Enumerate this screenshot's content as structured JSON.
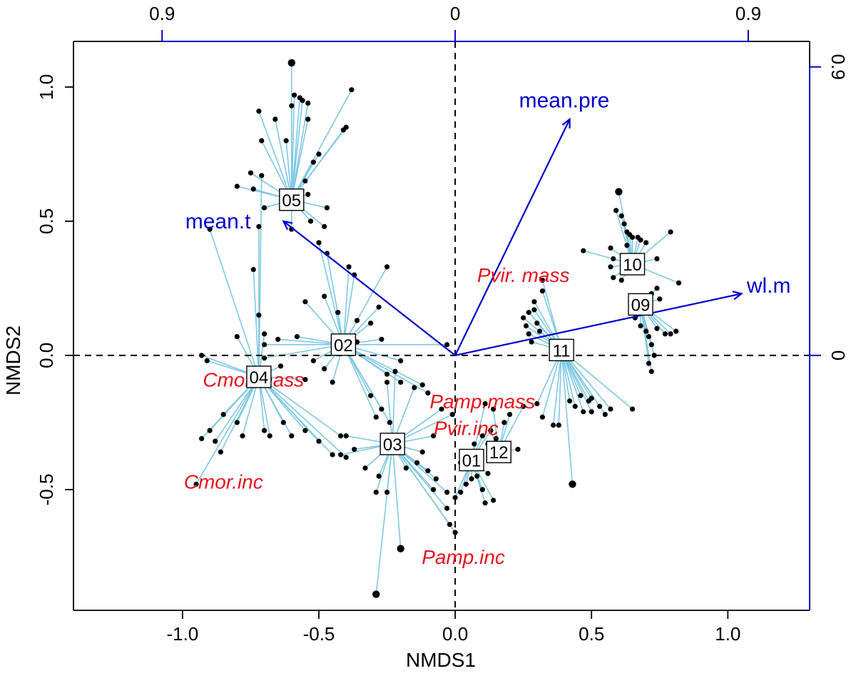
{
  "chart_data": {
    "type": "scatter",
    "xlabel": "NMDS1",
    "ylabel": "NMDS2",
    "xlim": [
      -1.4,
      1.3
    ],
    "ylim": [
      -0.95,
      1.17
    ],
    "x_ticks": [
      -1.0,
      -0.5,
      0.0,
      0.5,
      1.0
    ],
    "x_tick_labels": [
      "-1.0",
      "-0.5",
      "0.0",
      "0.5",
      "1.0"
    ],
    "y_ticks": [
      -0.5,
      0.0,
      0.5,
      1.0
    ],
    "y_tick_labels": [
      "-0.5",
      "0.0",
      "0.5",
      "1.0"
    ],
    "env_axis": {
      "color": "#0000cc",
      "top_tick_labels": [
        "0.9",
        "0",
        "0.9"
      ],
      "right_tick_labels": [
        "0.9",
        "0"
      ],
      "top_ticks_x": [
        -1.075,
        0.0,
        1.075
      ],
      "right_ticks_y": [
        1.075,
        0.0
      ]
    },
    "colors": {
      "spider": "#7ec8e3",
      "points": "#000000",
      "vectors": "#0000cc",
      "species": "#e8141e",
      "reference_lines": "#000000"
    },
    "env_vectors": [
      {
        "label": "mean.pre",
        "x": 0.42,
        "y": 0.88,
        "label_x": 0.4,
        "label_y": 0.95
      },
      {
        "label": "mean.t",
        "x": -0.63,
        "y": 0.5,
        "label_x": -0.87,
        "label_y": 0.5
      },
      {
        "label": "wl.m",
        "x": 1.05,
        "y": 0.23,
        "label_x": 1.15,
        "label_y": 0.26
      }
    ],
    "species": [
      {
        "label": "Pvir. mass",
        "x": 0.25,
        "y": 0.3
      },
      {
        "label": "Cmor.mass",
        "x": -0.74,
        "y": -0.09
      },
      {
        "label": "Pamp.mass",
        "x": 0.1,
        "y": -0.17
      },
      {
        "label": "Pvir.inc",
        "x": 0.04,
        "y": -0.27
      },
      {
        "label": "Cmor.inc",
        "x": -0.85,
        "y": -0.47
      },
      {
        "label": "Pamp.inc",
        "x": 0.03,
        "y": -0.75
      }
    ],
    "sites": [
      {
        "label": "05",
        "x": -0.6,
        "y": 0.58,
        "points": [
          [
            -0.6,
            1.09
          ],
          [
            -0.59,
            0.97
          ],
          [
            -0.57,
            0.96
          ],
          [
            -0.56,
            0.95
          ],
          [
            -0.54,
            0.94
          ],
          [
            -0.6,
            0.93
          ],
          [
            -0.72,
            0.91
          ],
          [
            -0.66,
            0.88
          ],
          [
            -0.54,
            0.88
          ],
          [
            -0.38,
            0.99
          ],
          [
            -0.4,
            0.85
          ],
          [
            -0.71,
            0.8
          ],
          [
            -0.62,
            0.8
          ],
          [
            -0.5,
            0.75
          ],
          [
            -0.41,
            0.84
          ],
          [
            -0.52,
            0.72
          ],
          [
            -0.75,
            0.68
          ],
          [
            -0.8,
            0.63
          ],
          [
            -0.74,
            0.62
          ],
          [
            -0.55,
            0.65
          ],
          [
            -0.54,
            0.6
          ],
          [
            -0.47,
            0.55
          ],
          [
            -0.7,
            0.55
          ],
          [
            -0.53,
            0.5
          ],
          [
            -0.48,
            0.48
          ],
          [
            -0.6,
            0.47
          ]
        ]
      },
      {
        "label": "02",
        "x": -0.41,
        "y": 0.04,
        "points": [
          [
            -0.5,
            0.42
          ],
          [
            -0.47,
            0.38
          ],
          [
            -0.39,
            0.33
          ],
          [
            -0.37,
            0.3
          ],
          [
            -0.25,
            0.33
          ],
          [
            -0.28,
            0.18
          ],
          [
            -0.48,
            0.22
          ],
          [
            -0.55,
            0.2
          ],
          [
            -0.43,
            0.16
          ],
          [
            -0.36,
            0.13
          ],
          [
            -0.31,
            0.12
          ],
          [
            -0.36,
            0.05
          ],
          [
            -0.58,
            0.07
          ],
          [
            -0.65,
            0.06
          ],
          [
            -0.7,
            0.04
          ],
          [
            -0.7,
            -0.01
          ],
          [
            -0.27,
            0.06
          ],
          [
            -0.03,
            0.04
          ],
          [
            -0.2,
            -0.02
          ],
          [
            -0.52,
            -0.02
          ],
          [
            -0.48,
            -0.05
          ],
          [
            -0.25,
            -0.07
          ],
          [
            -0.2,
            -0.1
          ],
          [
            -0.12,
            -0.11
          ],
          [
            -0.1,
            -0.14
          ],
          [
            -0.45,
            -0.1
          ],
          [
            -0.31,
            -0.15
          ],
          [
            -0.27,
            -0.2
          ],
          [
            -0.29,
            -0.23
          ],
          [
            -0.24,
            -0.25
          ]
        ]
      },
      {
        "label": "04",
        "x": -0.72,
        "y": -0.08,
        "points": [
          [
            -0.9,
            0.47
          ],
          [
            -0.71,
            0.67
          ],
          [
            -0.72,
            0.48
          ],
          [
            -0.74,
            0.32
          ],
          [
            -0.72,
            0.15
          ],
          [
            -0.7,
            0.08
          ],
          [
            -0.8,
            0.07
          ],
          [
            -0.93,
            0.0
          ],
          [
            -0.91,
            -0.02
          ],
          [
            -0.64,
            -0.04
          ],
          [
            -0.55,
            -0.09
          ],
          [
            -0.85,
            -0.22
          ],
          [
            -0.9,
            -0.28
          ],
          [
            -0.88,
            -0.32
          ],
          [
            -0.86,
            -0.36
          ],
          [
            -0.8,
            -0.25
          ],
          [
            -0.78,
            -0.3
          ],
          [
            -0.7,
            -0.28
          ],
          [
            -0.68,
            -0.3
          ],
          [
            -0.63,
            -0.25
          ],
          [
            -0.6,
            -0.3
          ],
          [
            -0.55,
            -0.28
          ],
          [
            -0.5,
            -0.32
          ],
          [
            -0.42,
            -0.3
          ],
          [
            -0.45,
            -0.37
          ],
          [
            -0.4,
            -0.38
          ],
          [
            -0.95,
            -0.48
          ],
          [
            -0.93,
            -0.31
          ]
        ]
      },
      {
        "label": "03",
        "x": -0.23,
        "y": -0.33,
        "points": [
          [
            -0.29,
            -0.89
          ],
          [
            -0.2,
            -0.72
          ],
          [
            -0.29,
            -0.51
          ],
          [
            -0.25,
            -0.51
          ],
          [
            -0.1,
            -0.43
          ],
          [
            -0.07,
            -0.46
          ],
          [
            -0.08,
            -0.5
          ],
          [
            -0.03,
            -0.51
          ],
          [
            -0.03,
            -0.57
          ],
          [
            -0.02,
            -0.63
          ],
          [
            0.0,
            -0.66
          ],
          [
            -0.12,
            -0.36
          ],
          [
            -0.08,
            -0.3
          ],
          [
            -0.05,
            -0.2
          ],
          [
            -0.01,
            -0.22
          ],
          [
            -0.25,
            -0.1
          ],
          [
            -0.22,
            -0.06
          ],
          [
            -0.15,
            -0.12
          ],
          [
            -0.4,
            -0.3
          ],
          [
            -0.42,
            -0.37
          ],
          [
            -0.37,
            -0.35
          ],
          [
            -0.33,
            -0.42
          ],
          [
            -0.28,
            -0.45
          ],
          [
            -0.18,
            -0.42
          ],
          [
            -0.14,
            -0.4
          ]
        ]
      },
      {
        "label": "01",
        "x": 0.06,
        "y": -0.39,
        "points": [
          [
            0.0,
            -0.53
          ],
          [
            0.02,
            -0.51
          ],
          [
            0.04,
            -0.48
          ],
          [
            0.06,
            -0.46
          ],
          [
            0.08,
            -0.45
          ],
          [
            0.12,
            -0.44
          ],
          [
            0.14,
            -0.54
          ],
          [
            0.11,
            -0.55
          ],
          [
            0.1,
            -0.5
          ],
          [
            0.02,
            -0.4
          ],
          [
            0.07,
            -0.33
          ],
          [
            0.1,
            -0.3
          ],
          [
            0.13,
            -0.28
          ],
          [
            0.11,
            -0.18
          ]
        ]
      },
      {
        "label": "12",
        "x": 0.16,
        "y": -0.36,
        "points": [
          [
            0.18,
            -0.25
          ],
          [
            0.2,
            -0.22
          ],
          [
            0.25,
            -0.19
          ],
          [
            0.14,
            -0.2
          ],
          [
            0.13,
            -0.28
          ],
          [
            0.15,
            -0.31
          ],
          [
            0.23,
            -0.35
          ],
          [
            0.12,
            -0.33
          ]
        ]
      },
      {
        "label": "11",
        "x": 0.39,
        "y": 0.02,
        "points": [
          [
            0.32,
            0.28
          ],
          [
            0.32,
            0.24
          ],
          [
            0.29,
            0.2
          ],
          [
            0.29,
            0.17
          ],
          [
            0.25,
            0.14
          ],
          [
            0.26,
            0.11
          ],
          [
            0.27,
            0.08
          ],
          [
            0.28,
            0.05
          ],
          [
            0.27,
            0.16
          ],
          [
            0.3,
            0.12
          ],
          [
            0.31,
            0.09
          ],
          [
            0.43,
            -0.48
          ],
          [
            0.44,
            -0.19
          ],
          [
            0.42,
            -0.17
          ],
          [
            0.46,
            -0.15
          ],
          [
            0.5,
            -0.16
          ],
          [
            0.5,
            -0.21
          ],
          [
            0.49,
            -0.17
          ],
          [
            0.47,
            -0.21
          ],
          [
            0.57,
            -0.2
          ],
          [
            0.55,
            -0.22
          ],
          [
            0.53,
            -0.19
          ],
          [
            0.65,
            -0.2
          ],
          [
            0.36,
            -0.26
          ],
          [
            0.3,
            -0.18
          ],
          [
            0.32,
            -0.23
          ],
          [
            0.38,
            -0.26
          ]
        ]
      },
      {
        "label": "10",
        "x": 0.65,
        "y": 0.34,
        "points": [
          [
            0.6,
            0.61
          ],
          [
            0.59,
            0.54
          ],
          [
            0.61,
            0.52
          ],
          [
            0.62,
            0.49
          ],
          [
            0.63,
            0.46
          ],
          [
            0.64,
            0.45
          ],
          [
            0.65,
            0.44
          ],
          [
            0.67,
            0.44
          ],
          [
            0.68,
            0.43
          ],
          [
            0.7,
            0.42
          ],
          [
            0.63,
            0.41
          ],
          [
            0.57,
            0.4
          ],
          [
            0.58,
            0.36
          ],
          [
            0.47,
            0.39
          ],
          [
            0.57,
            0.33
          ],
          [
            0.79,
            0.46
          ],
          [
            0.74,
            0.36
          ],
          [
            0.82,
            0.27
          ],
          [
            0.58,
            0.29
          ],
          [
            0.61,
            0.28
          ]
        ]
      },
      {
        "label": "09",
        "x": 0.68,
        "y": 0.19,
        "points": [
          [
            0.72,
            0.23
          ],
          [
            0.75,
            0.21
          ],
          [
            0.74,
            0.25
          ],
          [
            0.66,
            0.14
          ],
          [
            0.68,
            0.11
          ],
          [
            0.7,
            0.09
          ],
          [
            0.71,
            0.07
          ],
          [
            0.72,
            0.04
          ],
          [
            0.74,
            0.1
          ],
          [
            0.77,
            0.08
          ],
          [
            0.79,
            0.08
          ],
          [
            0.81,
            0.09
          ],
          [
            0.73,
            0.0
          ],
          [
            0.71,
            -0.03
          ],
          [
            0.72,
            -0.06
          ]
        ]
      }
    ]
  }
}
